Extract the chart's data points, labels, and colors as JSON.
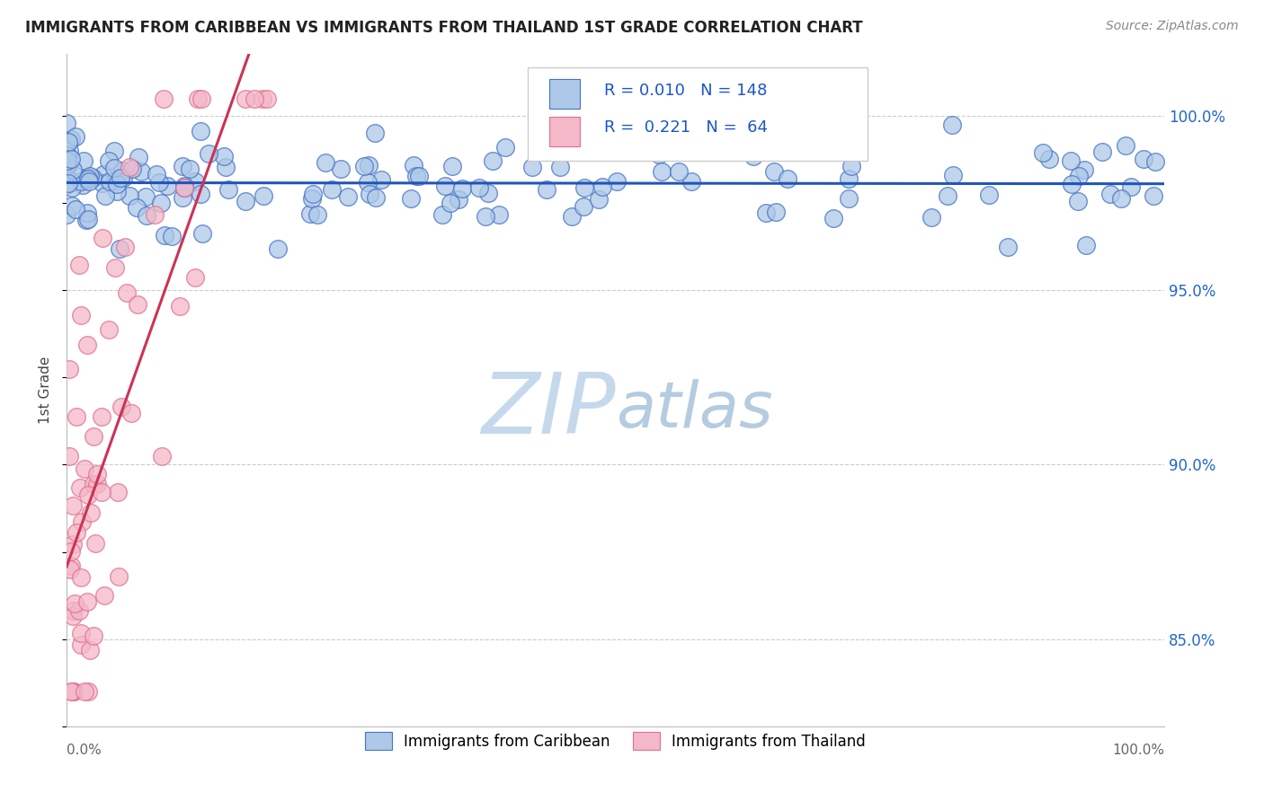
{
  "title": "IMMIGRANTS FROM CARIBBEAN VS IMMIGRANTS FROM THAILAND 1ST GRADE CORRELATION CHART",
  "source_text": "Source: ZipAtlas.com",
  "ylabel": "1st Grade",
  "xlim": [
    0.0,
    1.0
  ],
  "ylim": [
    0.825,
    1.018
  ],
  "legend_blue_label": "Immigrants from Caribbean",
  "legend_pink_label": "Immigrants from Thailand",
  "R_blue": 0.01,
  "N_blue": 148,
  "R_pink": 0.221,
  "N_pink": 64,
  "blue_fill": "#adc8e8",
  "blue_edge": "#4472c4",
  "pink_fill": "#f4b8c8",
  "pink_edge": "#e07090",
  "blue_line_color": "#2255bb",
  "pink_line_color": "#cc3355",
  "grid_color": "#cccccc",
  "watermark_zip_color": "#c0d4e8",
  "watermark_atlas_color": "#b0c8e0",
  "title_color": "#222222",
  "legend_text_color": "#1a56cc",
  "right_tick_color": "#2266cc",
  "y_ticks": [
    0.85,
    0.9,
    0.95,
    1.0
  ],
  "y_tick_labels": [
    "85.0%",
    "90.0%",
    "95.0%",
    "100.0%"
  ]
}
